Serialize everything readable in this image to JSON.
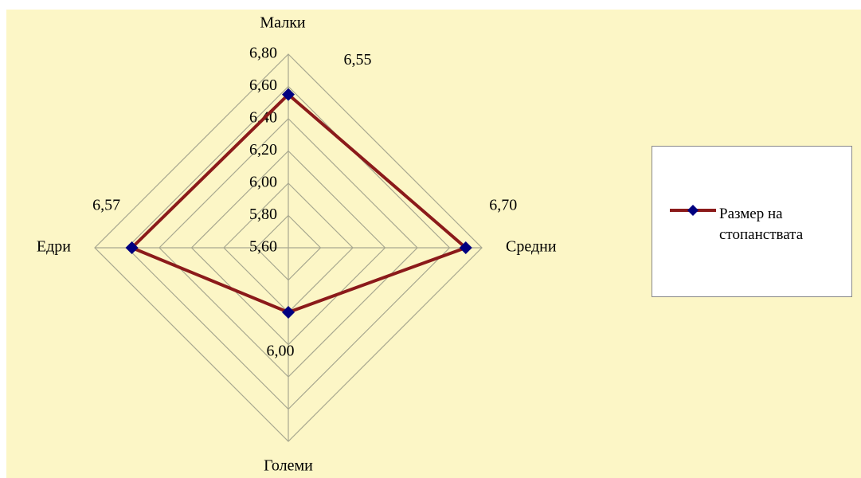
{
  "chart_data": {
    "type": "radar",
    "categories": [
      "Малки",
      "Средни",
      "Големи",
      "Едри"
    ],
    "series": [
      {
        "name": "Размер на стопанствата",
        "color": "#8b1a1a",
        "marker_color": "#000080",
        "values": [
          6.55,
          6.7,
          6.0,
          6.57
        ],
        "value_labels": [
          "6,55",
          "6,70",
          "6,00",
          "6,57"
        ]
      }
    ],
    "ylim": [
      5.6,
      6.8
    ],
    "yticks": [
      {
        "value": 5.6,
        "label": "5,60"
      },
      {
        "value": 5.8,
        "label": "5,80"
      },
      {
        "value": 6.0,
        "label": "6,00"
      },
      {
        "value": 6.2,
        "label": "6,20"
      },
      {
        "value": 6.4,
        "label": "6,40"
      },
      {
        "value": 6.6,
        "label": "6,60"
      },
      {
        "value": 6.8,
        "label": "6,80"
      }
    ],
    "grid": true,
    "legend": "right"
  }
}
